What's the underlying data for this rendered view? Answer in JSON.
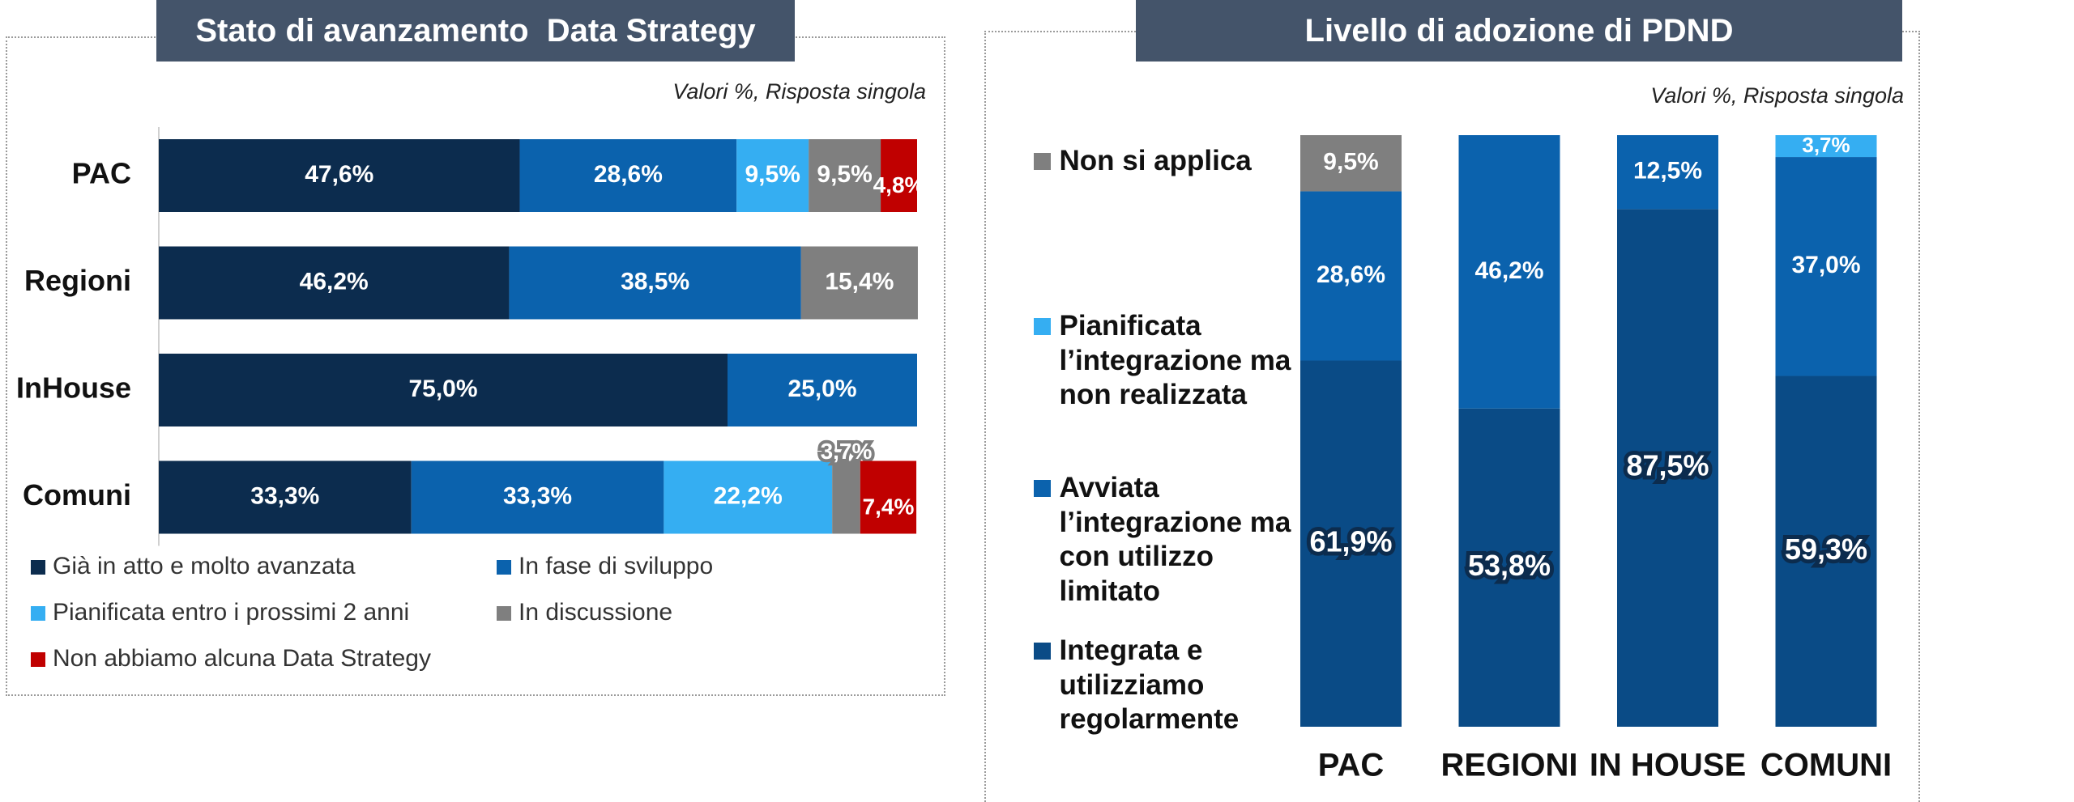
{
  "chart_data": [
    {
      "type": "bar",
      "orientation": "horizontal",
      "stacked": true,
      "title": "Stato di avanzamento  Data Strategy",
      "subtitle": "Valori %, Risposta singola",
      "categories": [
        "PAC",
        "Regioni",
        "InHouse",
        "Comuni"
      ],
      "xlim": [
        0,
        100
      ],
      "series": [
        {
          "name": "Già in atto e molto avanzata",
          "color": "#0c2c4e",
          "values": [
            47.6,
            46.2,
            75.0,
            33.3
          ],
          "value_labels": [
            "47,6%",
            "46,2%",
            "75,0%",
            "33,3%"
          ]
        },
        {
          "name": "In fase di sviluppo",
          "color": "#0b62ad",
          "values": [
            28.6,
            38.5,
            25.0,
            33.3
          ],
          "value_labels": [
            "28,6%",
            "38,5%",
            "25,0%",
            "33,3%"
          ]
        },
        {
          "name": "Pianificata entro i prossimi 2 anni",
          "color": "#35aef2",
          "values": [
            9.5,
            null,
            null,
            22.2
          ],
          "value_labels": [
            "9,5%",
            null,
            null,
            "22,2%"
          ]
        },
        {
          "name": "In discussione",
          "color": "#7f7f7f",
          "values": [
            9.5,
            15.4,
            null,
            3.7
          ],
          "value_labels": [
            "9,5%",
            "15,4%",
            null,
            "3,7%"
          ]
        },
        {
          "name": "Non abbiamo alcuna Data Strategy",
          "color": "#c00000",
          "values": [
            4.8,
            null,
            null,
            7.4
          ],
          "value_labels": [
            "4,8%",
            null,
            null,
            "7,4%"
          ]
        }
      ]
    },
    {
      "type": "bar",
      "orientation": "vertical",
      "stacked": true,
      "title": "Livello di adozione di PDND",
      "subtitle": "Valori %, Risposta singola",
      "categories": [
        "PAC",
        "REGIONI",
        "IN HOUSE",
        "COMUNI"
      ],
      "ylim": [
        0,
        100
      ],
      "series": [
        {
          "name": "Integrata e utilizziamo regolarmente",
          "color": "#0a4b86",
          "values": [
            61.9,
            53.8,
            87.5,
            59.3
          ],
          "value_labels": [
            "61,9%",
            "53,8%",
            "87,5%",
            "59,3%"
          ]
        },
        {
          "name": "Avviata l’integrazione ma con utilizzo limitato",
          "color": "#0b62ad",
          "values": [
            28.6,
            46.2,
            12.5,
            37.0
          ],
          "value_labels": [
            "28,6%",
            "46,2%",
            "12,5%",
            "37,0%"
          ]
        },
        {
          "name": "Pianificata l’integrazione ma non realizzata",
          "color": "#35aef2",
          "values": [
            null,
            null,
            null,
            3.7
          ],
          "value_labels": [
            null,
            null,
            null,
            "3,7%"
          ]
        },
        {
          "name": "Non si applica",
          "color": "#7f7f7f",
          "values": [
            9.5,
            null,
            null,
            null
          ],
          "value_labels": [
            "9,5%",
            null,
            null,
            null
          ]
        }
      ]
    }
  ]
}
